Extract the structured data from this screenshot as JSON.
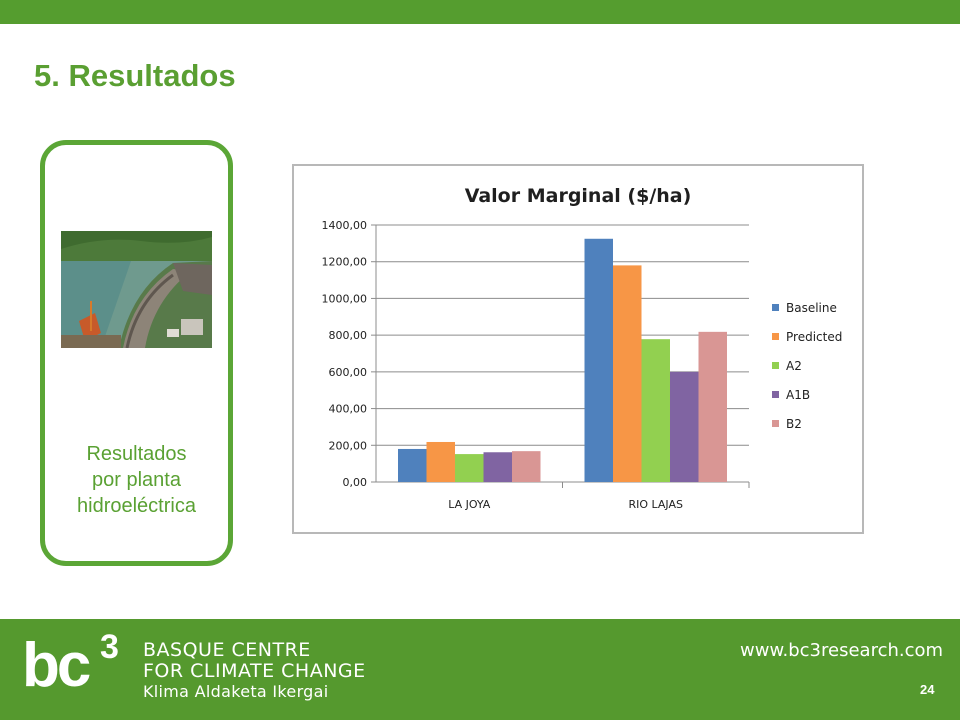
{
  "header": {
    "title": "5. Resultados"
  },
  "card": {
    "caption_line1": "Resultados",
    "caption_line2": "por planta",
    "caption_line3": "hidroeléctrica"
  },
  "chart_data": {
    "type": "bar",
    "title": "Valor Marginal ($/ha)",
    "categories": [
      "LA JOYA",
      "RIO LAJAS"
    ],
    "series": [
      {
        "name": "Baseline",
        "color": "#4f81bd",
        "values": [
          180,
          1325
        ]
      },
      {
        "name": "Predicted",
        "color": "#f79646",
        "values": [
          218,
          1180
        ]
      },
      {
        "name": "A2",
        "color": "#92d050",
        "values": [
          152,
          778
        ]
      },
      {
        "name": "A1B",
        "color": "#8064a2",
        "values": [
          162,
          600
        ]
      },
      {
        "name": "B2",
        "color": "#d99694",
        "values": [
          168,
          818
        ]
      }
    ],
    "ylim": [
      0,
      1400
    ],
    "yticks": [
      "0,00",
      "200,00",
      "400,00",
      "600,00",
      "800,00",
      "1000,00",
      "1200,00",
      "1400,00"
    ],
    "grid": true,
    "legend": "right"
  },
  "footer": {
    "logo_main": "bc",
    "logo_sup": "3",
    "org_line1": "BASQUE CENTRE",
    "org_line2": "FOR CLIMATE CHANGE",
    "org_line3": "Klima Aldaketa Ikergai",
    "url": "www.bc3research.com",
    "page_number": "24"
  }
}
